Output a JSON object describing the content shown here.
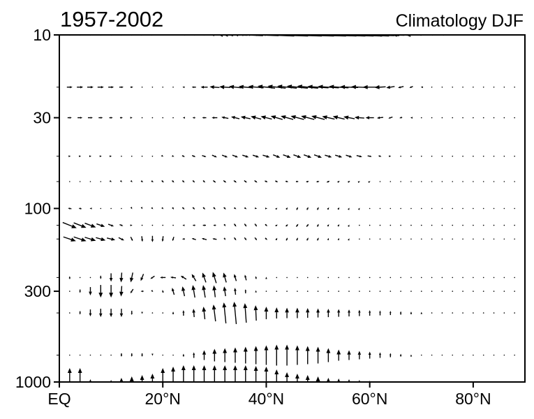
{
  "chart_data": {
    "type": "vector",
    "title": "1957-2002",
    "subtitle": "Climatology DJF",
    "xlabel": "",
    "ylabel": "",
    "xlim": [
      0,
      90
    ],
    "ylim": [
      1000,
      10
    ],
    "y_scale": "log",
    "x_ticks": [
      {
        "value": 0,
        "label": "EQ"
      },
      {
        "value": 20,
        "label": "20°N"
      },
      {
        "value": 40,
        "label": "40°N"
      },
      {
        "value": 60,
        "label": "60°N"
      },
      {
        "value": 80,
        "label": "80°N"
      }
    ],
    "y_ticks": [
      {
        "value": 10,
        "label": "10"
      },
      {
        "value": 30,
        "label": "30"
      },
      {
        "value": 100,
        "label": "100"
      },
      {
        "value": 300,
        "label": "300"
      },
      {
        "value": 1000,
        "label": "1000"
      }
    ],
    "grid": false,
    "arrow_color": "#000000",
    "latitudes": [
      2,
      4,
      6,
      8,
      10,
      12,
      14,
      16,
      18,
      20,
      22,
      24,
      26,
      28,
      30,
      32,
      34,
      36,
      38,
      40,
      42,
      44,
      46,
      48,
      50,
      52,
      54,
      56,
      58,
      60,
      62,
      64,
      66,
      68,
      70,
      72,
      74,
      76,
      78,
      80,
      82,
      84,
      86,
      88
    ],
    "levels": [
      {
        "p": 10,
        "u": [
          6,
          6,
          6,
          6,
          6,
          5,
          5,
          4,
          3,
          0,
          -1,
          -2,
          -4,
          -6,
          -10,
          -20,
          -35,
          -50,
          -65,
          -80,
          -90,
          -100,
          -105,
          -110,
          -110,
          -105,
          -100,
          -95,
          -85,
          -70,
          -55,
          -40,
          -25,
          -15,
          -8,
          -4,
          -2,
          0,
          0,
          0,
          0,
          0,
          0,
          0
        ],
        "v": [
          0,
          0,
          0,
          0,
          0,
          0,
          0,
          0,
          0,
          0,
          0,
          0,
          0,
          0,
          0,
          1,
          1,
          2,
          2,
          3,
          3,
          3,
          3,
          3,
          3,
          3,
          3,
          3,
          3,
          2,
          2,
          1,
          1,
          0,
          0,
          0,
          0,
          0,
          0,
          0,
          0,
          0,
          0,
          0
        ]
      },
      {
        "p": 20,
        "u": [
          8,
          9,
          9,
          9,
          8,
          6,
          4,
          1,
          0,
          0,
          -1,
          -3,
          -6,
          -10,
          -14,
          -16,
          -18,
          -20,
          -22,
          -25,
          -26,
          -28,
          -30,
          -30,
          -30,
          -30,
          -28,
          -26,
          -24,
          -20,
          -16,
          -12,
          -8,
          -5,
          -2,
          0,
          0,
          0,
          0,
          0,
          0,
          0,
          0,
          0
        ],
        "v": [
          0,
          0,
          0,
          0,
          0,
          0,
          0,
          0,
          0,
          0,
          0,
          0,
          0,
          0,
          1,
          1,
          2,
          2,
          2,
          3,
          3,
          3,
          3,
          3,
          2,
          2,
          2,
          1,
          1,
          0,
          -1,
          -2,
          -2,
          -2,
          0,
          0,
          0,
          0,
          0,
          0,
          0,
          0,
          0,
          0
        ]
      },
      {
        "p": 30,
        "u": [
          6,
          7,
          7,
          6,
          5,
          4,
          2,
          1,
          0,
          0,
          -1,
          -2,
          -4,
          -6,
          -8,
          -10,
          -12,
          -14,
          -15,
          -16,
          -17,
          -18,
          -19,
          -19,
          -19,
          -18,
          -17,
          -16,
          -14,
          -12,
          -9,
          -6,
          -4,
          -2,
          -1,
          0,
          0,
          0,
          0,
          0,
          0,
          0,
          0,
          0
        ],
        "v": [
          0,
          0,
          0,
          0,
          0,
          0,
          0,
          0,
          0,
          0,
          0,
          0,
          0,
          0,
          0,
          2,
          3,
          3,
          4,
          4,
          5,
          5,
          5,
          5,
          5,
          4,
          4,
          3,
          1,
          0,
          -1,
          -2,
          -1,
          0,
          0,
          0,
          0,
          0,
          0,
          0,
          0,
          0,
          0,
          0
        ]
      },
      {
        "p": 50,
        "u": [
          3,
          3,
          3,
          3,
          2,
          1,
          1,
          1,
          1,
          2,
          3,
          4,
          5,
          6,
          7,
          8,
          8,
          9,
          9,
          10,
          10,
          11,
          11,
          11,
          11,
          10,
          10,
          9,
          8,
          6,
          4,
          2,
          1,
          0,
          0,
          0,
          0,
          0,
          0,
          0,
          0,
          0,
          0,
          0
        ],
        "v": [
          0,
          0,
          0,
          0,
          0,
          0,
          0,
          0,
          0,
          -1,
          -1,
          -2,
          -2,
          -2,
          -3,
          -3,
          -3,
          -3,
          -3,
          -3,
          -4,
          -4,
          -4,
          -4,
          -4,
          -3,
          -3,
          -3,
          -2,
          -1,
          -1,
          0,
          0,
          0,
          0,
          0,
          0,
          0,
          0,
          0,
          0,
          0,
          0,
          0
        ]
      },
      {
        "p": 70,
        "u": [
          1,
          1,
          1,
          1,
          2,
          2,
          2,
          3,
          3,
          3,
          3,
          3,
          3,
          3,
          4,
          4,
          4,
          4,
          4,
          4,
          4,
          4,
          4,
          4,
          4,
          4,
          3,
          3,
          2,
          2,
          1,
          1,
          0,
          0,
          0,
          0,
          0,
          0,
          0,
          0,
          0,
          0,
          0,
          0
        ],
        "v": [
          0,
          0,
          0,
          -1,
          -1,
          -2,
          -2,
          -2,
          -2,
          -3,
          -3,
          -3,
          -3,
          -3,
          -3,
          -3,
          -3,
          -3,
          -3,
          -2,
          -2,
          -1,
          0,
          1,
          1,
          2,
          2,
          2,
          1,
          1,
          1,
          0,
          0,
          0,
          0,
          0,
          0,
          0,
          0,
          0,
          0,
          0,
          0,
          0
        ]
      },
      {
        "p": 100,
        "u": [
          -5,
          -4,
          -2,
          -1,
          0,
          1,
          1,
          1,
          2,
          2,
          2,
          3,
          3,
          3,
          3,
          3,
          3,
          3,
          3,
          3,
          2,
          2,
          2,
          2,
          2,
          2,
          2,
          1,
          1,
          1,
          0,
          0,
          0,
          0,
          0,
          0,
          0,
          0,
          0,
          0,
          0,
          0,
          0,
          0
        ],
        "v": [
          1,
          1,
          0,
          0,
          0,
          -1,
          -2,
          -2,
          -2,
          -2,
          -3,
          -3,
          -3,
          -3,
          -3,
          -3,
          -2,
          -2,
          -1,
          0,
          2,
          3,
          4,
          4,
          4,
          3,
          3,
          2,
          2,
          1,
          0,
          0,
          0,
          0,
          0,
          0,
          0,
          0,
          0,
          0,
          0,
          0,
          0,
          0
        ]
      },
      {
        "p": 125,
        "u": [
          20,
          18,
          16,
          12,
          8,
          5,
          2,
          1,
          0,
          0,
          0,
          -3,
          -4,
          -5,
          -4,
          2,
          3,
          3,
          3,
          3,
          3,
          3,
          3,
          3,
          2,
          2,
          2,
          1,
          1,
          0,
          0,
          0,
          0,
          0,
          0,
          0,
          0,
          0,
          0,
          0,
          0,
          0,
          0,
          0
        ],
        "v": [
          -8,
          -7,
          -6,
          -4,
          -3,
          -2,
          0,
          0,
          0,
          0,
          0,
          0,
          0,
          0,
          0,
          -3,
          -4,
          -4,
          -4,
          -3,
          2,
          3,
          4,
          4,
          4,
          3,
          3,
          2,
          1,
          0,
          0,
          0,
          0,
          0,
          0,
          0,
          0,
          0,
          0,
          0,
          0,
          0,
          0,
          0
        ]
      },
      {
        "p": 150,
        "u": [
          18,
          18,
          16,
          14,
          12,
          8,
          3,
          1,
          0,
          -1,
          -2,
          -4,
          -6,
          -7,
          -6,
          2,
          3,
          3,
          3,
          3,
          2,
          2,
          2,
          2,
          2,
          1,
          1,
          1,
          0,
          0,
          0,
          0,
          0,
          0,
          0,
          0,
          0,
          0,
          0,
          0,
          0,
          0,
          0,
          0
        ],
        "v": [
          -6,
          -6,
          -5,
          -4,
          -3,
          -4,
          -6,
          -8,
          -9,
          -8,
          -6,
          0,
          2,
          2,
          1,
          -3,
          -4,
          -4,
          -4,
          -3,
          3,
          4,
          4,
          4,
          4,
          3,
          3,
          2,
          1,
          0,
          0,
          0,
          0,
          0,
          0,
          0,
          0,
          0,
          0,
          0,
          0,
          0,
          0,
          0
        ]
      },
      {
        "p": 250,
        "u": [
          0,
          0,
          0,
          0,
          0,
          -1,
          -3,
          -4,
          -6,
          -8,
          -8,
          -8,
          -6,
          -5,
          -5,
          -4,
          -3,
          -2,
          -1,
          0,
          0,
          0,
          0,
          0,
          0,
          0,
          0,
          0,
          0,
          0,
          0,
          0,
          0,
          0,
          0,
          0,
          0,
          0,
          0,
          0,
          0,
          0,
          0,
          0
        ],
        "v": [
          4,
          0,
          0,
          -5,
          -12,
          -14,
          -14,
          -10,
          -4,
          0,
          1,
          5,
          10,
          14,
          16,
          14,
          10,
          8,
          4,
          2,
          0,
          0,
          0,
          0,
          0,
          0,
          0,
          0,
          0,
          0,
          0,
          0,
          0,
          0,
          0,
          0,
          0,
          0,
          0,
          0,
          0,
          0,
          0,
          0
        ]
      },
      {
        "p": 300,
        "u": [
          0,
          0,
          0,
          0,
          0,
          -1,
          -4,
          -4,
          2,
          -1,
          -3,
          -3,
          -3,
          -3,
          -2,
          -2,
          -1,
          0,
          0,
          0,
          0,
          0,
          0,
          0,
          0,
          0,
          0,
          0,
          0,
          0,
          0,
          0,
          0,
          0,
          0,
          0,
          0,
          0,
          0,
          0,
          0,
          0,
          0,
          0
        ],
        "v": [
          0,
          -5,
          -12,
          -18,
          -18,
          -15,
          -6,
          0,
          -2,
          4,
          10,
          14,
          18,
          18,
          17,
          14,
          10,
          6,
          3,
          1,
          0,
          0,
          0,
          0,
          0,
          0,
          0,
          0,
          0,
          0,
          0,
          0,
          0,
          0,
          0,
          0,
          0,
          0,
          0,
          0,
          0,
          0,
          0,
          0
        ]
      },
      {
        "p": 400,
        "u": [
          0,
          0,
          0,
          0,
          0,
          0,
          0,
          0,
          0,
          0,
          0,
          0,
          -1,
          -2,
          -3,
          -3,
          -3,
          -2,
          -1,
          0,
          0,
          0,
          0,
          0,
          0,
          0,
          0,
          0,
          0,
          0,
          0,
          0,
          0,
          0,
          0,
          0,
          0,
          0,
          0,
          0,
          0,
          0,
          0,
          0
        ],
        "v": [
          1,
          -5,
          -10,
          -12,
          -12,
          -12,
          -6,
          -3,
          0,
          0,
          4,
          8,
          12,
          18,
          24,
          30,
          32,
          28,
          22,
          18,
          16,
          15,
          15,
          14,
          13,
          12,
          11,
          10,
          9,
          8,
          7,
          6,
          5,
          4,
          3,
          1,
          0,
          0,
          0,
          0,
          0,
          0,
          0,
          0
        ]
      },
      {
        "p": 700,
        "u": [
          0,
          0,
          0,
          0,
          0,
          0,
          0,
          0,
          0,
          0,
          0,
          0,
          0,
          0,
          0,
          0,
          0,
          0,
          0,
          0,
          0,
          0,
          0,
          0,
          0,
          0,
          0,
          0,
          0,
          0,
          0,
          0,
          0,
          0,
          0,
          0,
          0,
          0,
          0,
          0,
          0,
          0,
          0,
          0
        ],
        "v": [
          0,
          0,
          0,
          0,
          0,
          -5,
          -5,
          -5,
          -2,
          0,
          0,
          4,
          8,
          14,
          18,
          20,
          22,
          24,
          26,
          28,
          30,
          30,
          28,
          26,
          24,
          20,
          16,
          14,
          12,
          10,
          8,
          6,
          4,
          2,
          0,
          0,
          0,
          0,
          0,
          0,
          0,
          0,
          0,
          0
        ]
      },
      {
        "p": 1000,
        "u": [
          0,
          0,
          0,
          0,
          0,
          0,
          0,
          0,
          0,
          0,
          0,
          0,
          0,
          0,
          0,
          0,
          0,
          0,
          0,
          0,
          0,
          0,
          0,
          0,
          0,
          0,
          0,
          0,
          0,
          0,
          0,
          0,
          0,
          0,
          0,
          0,
          0,
          0,
          0,
          0,
          0,
          0,
          0,
          0
        ],
        "v": [
          40,
          40,
          8,
          0,
          6,
          12,
          16,
          20,
          24,
          40,
          44,
          48,
          48,
          48,
          48,
          48,
          48,
          48,
          46,
          44,
          36,
          28,
          24,
          20,
          16,
          12,
          10,
          8,
          6,
          4,
          2,
          0,
          0,
          0,
          0,
          0,
          0,
          0,
          0,
          0,
          0,
          0,
          0,
          0
        ]
      }
    ]
  }
}
